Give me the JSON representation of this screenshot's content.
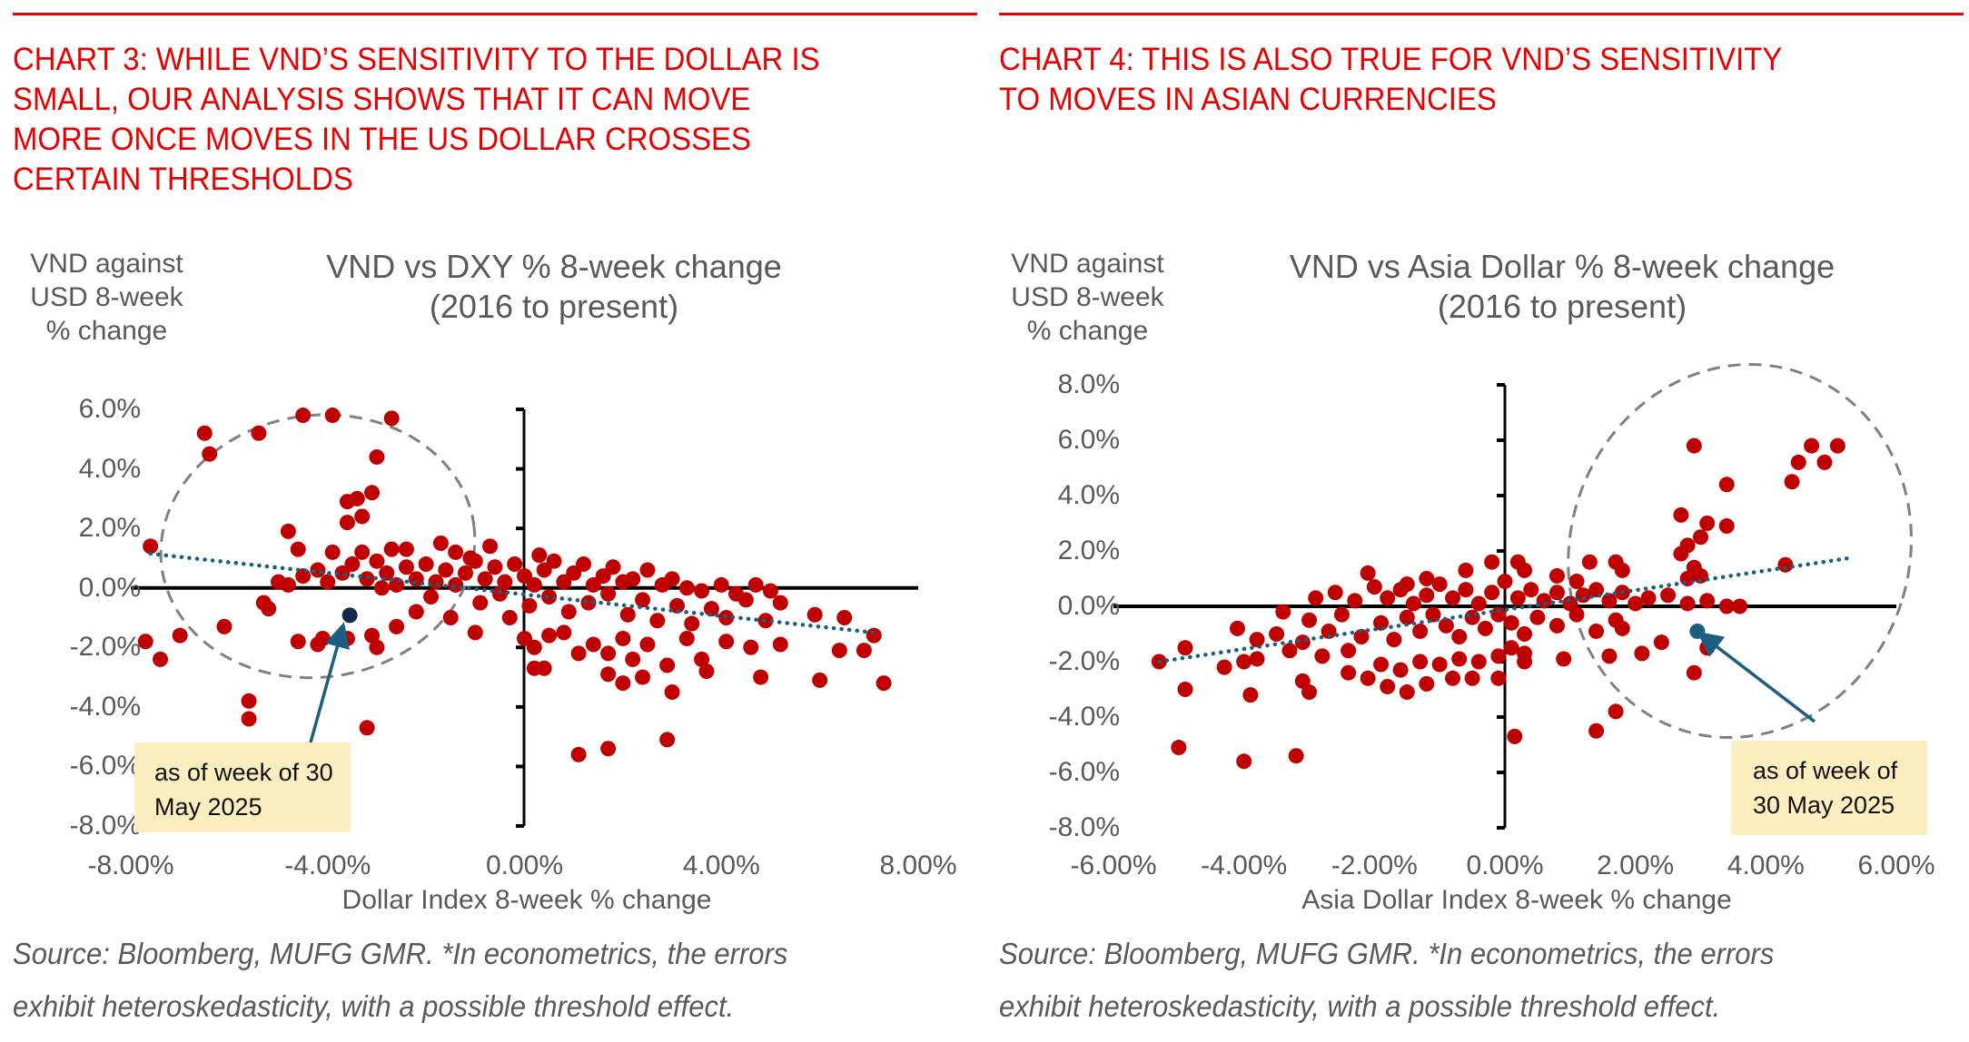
{
  "headers": {
    "left": {
      "lines": [
        "CHART 3: WHILE VND’S SENSITIVITY TO THE DOLLAR IS",
        "SMALL, OUR ANALYSIS SHOWS THAT IT CAN MOVE",
        "MORE ONCE MOVES IN THE US DOLLAR CROSSES",
        "CERTAIN THRESHOLDS"
      ]
    },
    "right": {
      "lines": [
        "CHART 4: THIS IS ALSO TRUE FOR VND’S SENSITIVITY",
        "TO MOVES IN ASIAN CURRENCIES"
      ]
    }
  },
  "colors": {
    "headline": "#e60000",
    "points": "#c00000",
    "current_point_chart3": "#13294b",
    "current_point_chart4": "#1b5e80",
    "trendline": "#1b5e80",
    "callout_bg": "#fdeec0",
    "ellipse": "#808080",
    "text": "#595959"
  },
  "sources": {
    "left": [
      "Source: Bloomberg, MUFG GMR.  *In econometrics, the errors",
      "exhibit heteroskedasticity, with a possible threshold effect."
    ],
    "right": [
      "Source: Bloomberg, MUFG GMR. *In econometrics, the errors",
      "exhibit heteroskedasticity, with a possible threshold effect."
    ]
  },
  "chart_data": [
    {
      "type": "scatter",
      "title": "VND vs DXY % 8-week change",
      "subtitle": "(2016 to present)",
      "xlabel": "Dollar Index 8-week % change",
      "ylabel_lines": [
        "VND against",
        "USD 8-week",
        "% change"
      ],
      "xlim": [
        -8,
        8
      ],
      "ylim": [
        -8,
        6
      ],
      "x_ticks": [
        -8,
        -4,
        0,
        4,
        8
      ],
      "x_tick_labels": [
        "-8.00%",
        "-4.00%",
        "0.00%",
        "4.00%",
        "8.00%"
      ],
      "y_ticks": [
        6,
        4,
        2,
        0,
        -2,
        -4,
        -6,
        -8
      ],
      "y_tick_labels": [
        "6.0%",
        "4.0%",
        "2.0%",
        "0.0%",
        "-2.0%",
        "-4.0%",
        "-6.0%",
        "-8.0%"
      ],
      "grid": false,
      "trendline": {
        "style": "dotted",
        "x": [
          -7.6,
          7.1
        ],
        "y": [
          1.15,
          -1.5
        ]
      },
      "highlight_region": {
        "shape": "dashed-ellipse",
        "center": [
          -4.2,
          1.4
        ],
        "radius_x": 3.2,
        "radius_y": 4.4,
        "rotation_deg": -8
      },
      "current_point": {
        "x": -3.55,
        "y": -0.92,
        "label_lines": [
          "as of week of 30",
          "May 2025"
        ]
      },
      "points": [
        [
          -7.6,
          1.4
        ],
        [
          -6.5,
          5.2
        ],
        [
          -6.4,
          4.5
        ],
        [
          -5.4,
          5.2
        ],
        [
          -4.5,
          5.8
        ],
        [
          -3.9,
          5.8
        ],
        [
          -2.7,
          5.7
        ],
        [
          -3.0,
          4.4
        ],
        [
          -3.4,
          3.0
        ],
        [
          -3.1,
          3.2
        ],
        [
          -3.6,
          2.9
        ],
        [
          -3.3,
          2.4
        ],
        [
          -3.6,
          2.2
        ],
        [
          -4.8,
          1.9
        ],
        [
          -4.6,
          1.3
        ],
        [
          -3.9,
          1.2
        ],
        [
          -3.3,
          1.2
        ],
        [
          -2.7,
          1.3
        ],
        [
          -2.4,
          1.3
        ],
        [
          -1.7,
          1.5
        ],
        [
          -1.4,
          1.2
        ],
        [
          -1.1,
          1.0
        ],
        [
          -0.7,
          1.4
        ],
        [
          0.3,
          1.1
        ],
        [
          -5.0,
          0.2
        ],
        [
          -4.8,
          0.1
        ],
        [
          -4.5,
          0.4
        ],
        [
          -4.2,
          0.6
        ],
        [
          -4.0,
          0.2
        ],
        [
          -3.7,
          0.5
        ],
        [
          -3.5,
          0.8
        ],
        [
          -3.2,
          0.3
        ],
        [
          -3.0,
          0.9
        ],
        [
          -2.8,
          0.5
        ],
        [
          -2.6,
          0.1
        ],
        [
          -2.4,
          0.7
        ],
        [
          -2.2,
          0.3
        ],
        [
          -2.0,
          0.8
        ],
        [
          -1.8,
          0.2
        ],
        [
          -1.6,
          0.6
        ],
        [
          -1.4,
          0.1
        ],
        [
          -1.2,
          0.5
        ],
        [
          -1.0,
          0.9
        ],
        [
          -0.8,
          0.3
        ],
        [
          -0.6,
          0.7
        ],
        [
          -0.4,
          0.2
        ],
        [
          -0.2,
          0.8
        ],
        [
          0.0,
          0.4
        ],
        [
          0.2,
          0.1
        ],
        [
          0.4,
          0.6
        ],
        [
          0.6,
          0.9
        ],
        [
          0.8,
          0.2
        ],
        [
          1.0,
          0.5
        ],
        [
          1.2,
          0.8
        ],
        [
          1.4,
          0.1
        ],
        [
          1.6,
          0.4
        ],
        [
          1.8,
          0.7
        ],
        [
          2.0,
          0.2
        ],
        [
          2.2,
          0.3
        ],
        [
          2.5,
          0.6
        ],
        [
          2.8,
          0.1
        ],
        [
          3.0,
          0.3
        ],
        [
          3.3,
          0.0
        ],
        [
          3.6,
          -0.1
        ],
        [
          4.0,
          0.1
        ],
        [
          4.3,
          -0.2
        ],
        [
          4.7,
          0.1
        ],
        [
          5.0,
          -0.1
        ],
        [
          5.2,
          -0.5
        ],
        [
          -2.9,
          0.0
        ],
        [
          -1.9,
          -0.3
        ],
        [
          -0.9,
          -0.5
        ],
        [
          -0.5,
          -0.2
        ],
        [
          0.1,
          -0.6
        ],
        [
          0.5,
          -0.3
        ],
        [
          0.9,
          -0.8
        ],
        [
          1.3,
          -0.5
        ],
        [
          1.7,
          -0.2
        ],
        [
          2.1,
          -0.9
        ],
        [
          2.4,
          -0.4
        ],
        [
          2.7,
          -1.1
        ],
        [
          3.1,
          -0.6
        ],
        [
          3.4,
          -1.2
        ],
        [
          3.8,
          -0.7
        ],
        [
          4.1,
          -1.0
        ],
        [
          4.5,
          -0.4
        ],
        [
          4.9,
          -1.1
        ],
        [
          -1.5,
          -1.0
        ],
        [
          -2.2,
          -0.8
        ],
        [
          -2.6,
          -1.3
        ],
        [
          -1.0,
          -1.5
        ],
        [
          -0.3,
          -1.0
        ],
        [
          0.0,
          -1.7
        ],
        [
          0.2,
          -2.0
        ],
        [
          0.5,
          -1.6
        ],
        [
          0.8,
          -1.5
        ],
        [
          1.1,
          -2.2
        ],
        [
          1.4,
          -1.9
        ],
        [
          1.7,
          -2.2
        ],
        [
          2.0,
          -1.7
        ],
        [
          2.2,
          -2.4
        ],
        [
          2.5,
          -1.9
        ],
        [
          2.9,
          -2.6
        ],
        [
          3.3,
          -1.7
        ],
        [
          3.6,
          -2.4
        ],
        [
          4.1,
          -1.8
        ],
        [
          4.6,
          -2.0
        ],
        [
          5.2,
          -1.9
        ],
        [
          5.9,
          -0.9
        ],
        [
          6.5,
          -1.0
        ],
        [
          6.4,
          -2.1
        ],
        [
          6.9,
          -2.1
        ],
        [
          7.1,
          -1.6
        ],
        [
          7.3,
          -3.2
        ],
        [
          6.0,
          -3.1
        ],
        [
          4.8,
          -3.0
        ],
        [
          3.7,
          -2.8
        ],
        [
          3.0,
          -3.5
        ],
        [
          2.4,
          -3.0
        ],
        [
          2.0,
          -3.2
        ],
        [
          1.7,
          -2.9
        ],
        [
          0.2,
          -2.7
        ],
        [
          0.4,
          -2.7
        ],
        [
          -4.2,
          -1.9
        ],
        [
          -4.6,
          -1.8
        ],
        [
          -3.1,
          -1.6
        ],
        [
          -3.0,
          -2.0
        ],
        [
          -4.1,
          -1.7
        ],
        [
          -5.3,
          -0.5
        ],
        [
          -5.2,
          -0.7
        ],
        [
          -6.1,
          -1.3
        ],
        [
          -7.0,
          -1.6
        ],
        [
          -7.7,
          -1.8
        ],
        [
          -7.4,
          -2.4
        ],
        [
          -5.6,
          -3.8
        ],
        [
          -5.6,
          -4.4
        ],
        [
          -3.2,
          -4.7
        ],
        [
          1.1,
          -5.6
        ],
        [
          1.7,
          -5.4
        ],
        [
          2.9,
          -5.1
        ],
        [
          -3.6,
          -1.7
        ]
      ]
    },
    {
      "type": "scatter",
      "title": "VND vs Asia Dollar % 8-week change",
      "subtitle": "(2016 to present)",
      "xlabel": "Asia Dollar Index 8-week % change",
      "ylabel_lines": [
        "VND against",
        "USD 8-week",
        "% change"
      ],
      "xlim": [
        -6,
        6
      ],
      "ylim": [
        -8,
        8
      ],
      "x_ticks": [
        -6,
        -4,
        -2,
        0,
        2,
        4,
        6
      ],
      "x_tick_labels": [
        "-6.00%",
        "-4.00%",
        "-2.00%",
        "0.00%",
        "2.00%",
        "4.00%",
        "6.00%"
      ],
      "y_ticks": [
        8,
        6,
        4,
        2,
        0,
        -2,
        -4,
        -6,
        -8
      ],
      "y_tick_labels": [
        "8.0%",
        "6.0%",
        "4.0%",
        "2.0%",
        "0.0%",
        "-2.0%",
        "-4.0%",
        "-6.0%",
        "-8.0%"
      ],
      "grid": false,
      "trendline": {
        "style": "dotted",
        "x": [
          -5.3,
          5.3
        ],
        "y": [
          -2.0,
          1.75
        ]
      },
      "highlight_region": {
        "shape": "dashed-ellipse",
        "center": [
          3.6,
          2.0
        ],
        "radius_x": 2.6,
        "radius_y": 6.8,
        "rotation_deg": 18
      },
      "current_point": {
        "x": 2.95,
        "y": -0.9,
        "label_lines": [
          "as of week of",
          "30 May 2025"
        ]
      },
      "points": [
        [
          2.9,
          5.8
        ],
        [
          4.7,
          5.8
        ],
        [
          5.1,
          5.8
        ],
        [
          4.5,
          5.2
        ],
        [
          4.9,
          5.2
        ],
        [
          4.4,
          4.5
        ],
        [
          3.4,
          4.4
        ],
        [
          2.7,
          3.3
        ],
        [
          3.1,
          3.0
        ],
        [
          3.4,
          2.9
        ],
        [
          3.0,
          2.5
        ],
        [
          2.8,
          2.2
        ],
        [
          2.7,
          1.9
        ],
        [
          2.9,
          1.4
        ],
        [
          3.0,
          1.1
        ],
        [
          2.8,
          1.0
        ],
        [
          4.3,
          1.5
        ],
        [
          1.3,
          1.6
        ],
        [
          1.7,
          1.6
        ],
        [
          1.8,
          1.3
        ],
        [
          0.2,
          1.6
        ],
        [
          -0.2,
          1.6
        ],
        [
          -2.1,
          1.2
        ],
        [
          -0.6,
          1.3
        ],
        [
          -1.2,
          1.0
        ],
        [
          -1.5,
          0.8
        ],
        [
          0.3,
          1.3
        ],
        [
          0.8,
          1.1
        ],
        [
          1.1,
          0.9
        ],
        [
          -2.9,
          0.3
        ],
        [
          -2.6,
          0.5
        ],
        [
          -2.3,
          0.2
        ],
        [
          -2.0,
          0.7
        ],
        [
          -1.8,
          0.3
        ],
        [
          -1.6,
          0.6
        ],
        [
          -1.4,
          0.1
        ],
        [
          -1.2,
          0.4
        ],
        [
          -1.0,
          0.8
        ],
        [
          -0.8,
          0.3
        ],
        [
          -0.6,
          0.6
        ],
        [
          -0.4,
          0.1
        ],
        [
          -0.2,
          0.5
        ],
        [
          0.0,
          0.9
        ],
        [
          0.2,
          0.3
        ],
        [
          0.4,
          0.6
        ],
        [
          0.6,
          0.2
        ],
        [
          0.8,
          0.5
        ],
        [
          1.0,
          0.1
        ],
        [
          1.2,
          0.4
        ],
        [
          1.4,
          0.6
        ],
        [
          1.6,
          0.2
        ],
        [
          1.8,
          0.5
        ],
        [
          2.0,
          0.1
        ],
        [
          2.2,
          0.3
        ],
        [
          2.5,
          0.4
        ],
        [
          2.8,
          0.1
        ],
        [
          3.1,
          0.2
        ],
        [
          3.4,
          0.0
        ],
        [
          3.6,
          0.0
        ],
        [
          -3.4,
          -0.2
        ],
        [
          -3.0,
          -0.5
        ],
        [
          -2.7,
          -0.9
        ],
        [
          -2.5,
          -0.3
        ],
        [
          -2.2,
          -1.1
        ],
        [
          -1.9,
          -0.6
        ],
        [
          -1.7,
          -1.2
        ],
        [
          -1.5,
          -0.4
        ],
        [
          -1.3,
          -0.9
        ],
        [
          -1.1,
          -0.3
        ],
        [
          -0.9,
          -0.7
        ],
        [
          -0.7,
          -1.1
        ],
        [
          -0.5,
          -0.4
        ],
        [
          -0.3,
          -0.8
        ],
        [
          -0.1,
          -0.3
        ],
        [
          0.1,
          -0.6
        ],
        [
          0.3,
          -1.0
        ],
        [
          0.5,
          -0.4
        ],
        [
          0.8,
          -0.7
        ],
        [
          1.1,
          -0.3
        ],
        [
          1.4,
          -0.9
        ],
        [
          1.7,
          -0.5
        ],
        [
          -4.1,
          -0.8
        ],
        [
          -3.8,
          -1.2
        ],
        [
          -3.5,
          -1.0
        ],
        [
          -3.3,
          -1.6
        ],
        [
          -3.1,
          -1.3
        ],
        [
          -2.8,
          -1.8
        ],
        [
          -2.4,
          -1.6
        ],
        [
          -1.9,
          -2.1
        ],
        [
          -1.6,
          -2.3
        ],
        [
          -1.3,
          -2.0
        ],
        [
          -1.0,
          -2.1
        ],
        [
          -0.7,
          -1.9
        ],
        [
          -0.4,
          -2.0
        ],
        [
          -0.1,
          -1.8
        ],
        [
          0.1,
          -1.5
        ],
        [
          0.3,
          -2.0
        ],
        [
          -2.4,
          -2.4
        ],
        [
          -2.1,
          -2.6
        ],
        [
          -1.8,
          -2.9
        ],
        [
          -1.5,
          -3.1
        ],
        [
          -1.2,
          -2.8
        ],
        [
          -0.8,
          -2.6
        ],
        [
          -0.5,
          -2.6
        ],
        [
          -0.1,
          -2.6
        ],
        [
          -3.1,
          -2.7
        ],
        [
          -3.0,
          -3.1
        ],
        [
          -4.3,
          -2.2
        ],
        [
          -4.0,
          -2.0
        ],
        [
          -3.8,
          -1.9
        ],
        [
          -5.3,
          -2.0
        ],
        [
          -4.9,
          -1.5
        ],
        [
          -4.9,
          -3.0
        ],
        [
          -3.9,
          -3.2
        ],
        [
          -5.0,
          -5.1
        ],
        [
          -4.0,
          -5.6
        ],
        [
          -3.2,
          -5.4
        ],
        [
          0.15,
          -4.7
        ],
        [
          1.4,
          -4.5
        ],
        [
          1.7,
          -3.8
        ],
        [
          3.1,
          -1.5
        ],
        [
          2.9,
          -2.4
        ],
        [
          1.8,
          -0.8
        ],
        [
          2.1,
          -1.7
        ],
        [
          1.6,
          -1.8
        ],
        [
          2.4,
          -1.3
        ],
        [
          0.9,
          -1.9
        ],
        [
          0.3,
          -1.7
        ]
      ]
    }
  ]
}
